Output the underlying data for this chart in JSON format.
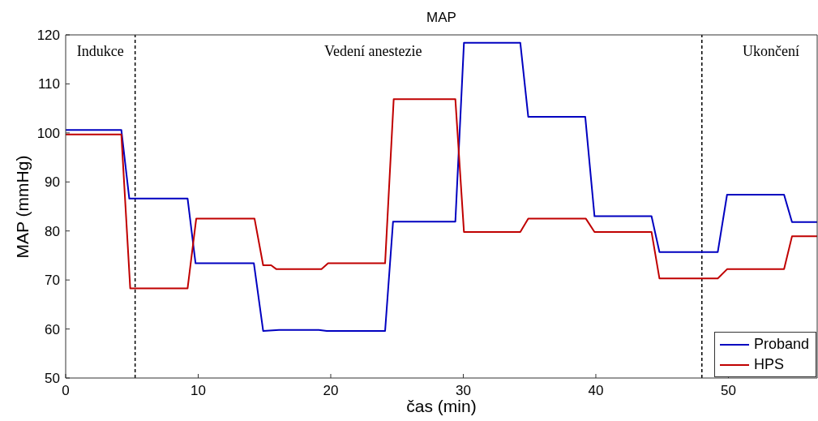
{
  "chart_data": {
    "type": "line",
    "title": "MAP",
    "xlabel": "čas (min)",
    "ylabel": "MAP (mmHg)",
    "xlim": [
      0,
      56.7
    ],
    "xticks": [
      0,
      10,
      20,
      30,
      40,
      50
    ],
    "ylim": [
      50,
      120
    ],
    "yticks": [
      50,
      60,
      70,
      80,
      90,
      100,
      110,
      120
    ],
    "grid": false,
    "legend": "bottom right",
    "marker": "none",
    "line_style": "solid",
    "series": [
      {
        "name": "Proband",
        "color": "#0000c0",
        "x": [
          0,
          4.2,
          4.8,
          9.2,
          9.8,
          14.2,
          14.9,
          16.1,
          19.1,
          19.7,
          24.1,
          24.7,
          29.4,
          30.05,
          34.3,
          34.9,
          39.2,
          39.9,
          44.2,
          44.8,
          49.2,
          49.9,
          54.2,
          54.8,
          56.7
        ],
        "values": [
          100.6,
          100.6,
          86.6,
          86.6,
          73.4,
          73.4,
          59.6,
          59.8,
          59.8,
          59.6,
          59.6,
          81.9,
          81.9,
          118.4,
          118.4,
          103.3,
          103.3,
          83.0,
          83.0,
          75.7,
          75.7,
          87.4,
          87.4,
          81.8,
          81.8
        ]
      },
      {
        "name": "HPS",
        "color": "#c00000",
        "x": [
          0,
          4.2,
          4.87,
          9.2,
          9.85,
          14.25,
          14.9,
          15.5,
          15.9,
          19.3,
          19.8,
          24.1,
          24.75,
          29.4,
          30.05,
          34.3,
          34.9,
          39.25,
          39.9,
          44.2,
          44.8,
          49.2,
          49.9,
          54.2,
          54.8,
          56.7
        ],
        "values": [
          99.7,
          99.7,
          68.3,
          68.3,
          82.5,
          82.5,
          73.0,
          73.0,
          72.2,
          72.2,
          73.4,
          73.4,
          106.9,
          106.9,
          79.8,
          79.8,
          82.5,
          82.5,
          79.8,
          79.8,
          70.3,
          70.3,
          72.2,
          72.2,
          78.9,
          78.9
        ]
      }
    ],
    "ref_lines": [
      {
        "axis": "x",
        "value": 5.24,
        "color": "#000000",
        "line_style": "dashed"
      },
      {
        "axis": "x",
        "value": 48.0,
        "color": "#000000",
        "line_style": "dashed"
      }
    ],
    "annotations": [
      "Indukce",
      "Vedení anestezie",
      "Ukončení"
    ]
  }
}
